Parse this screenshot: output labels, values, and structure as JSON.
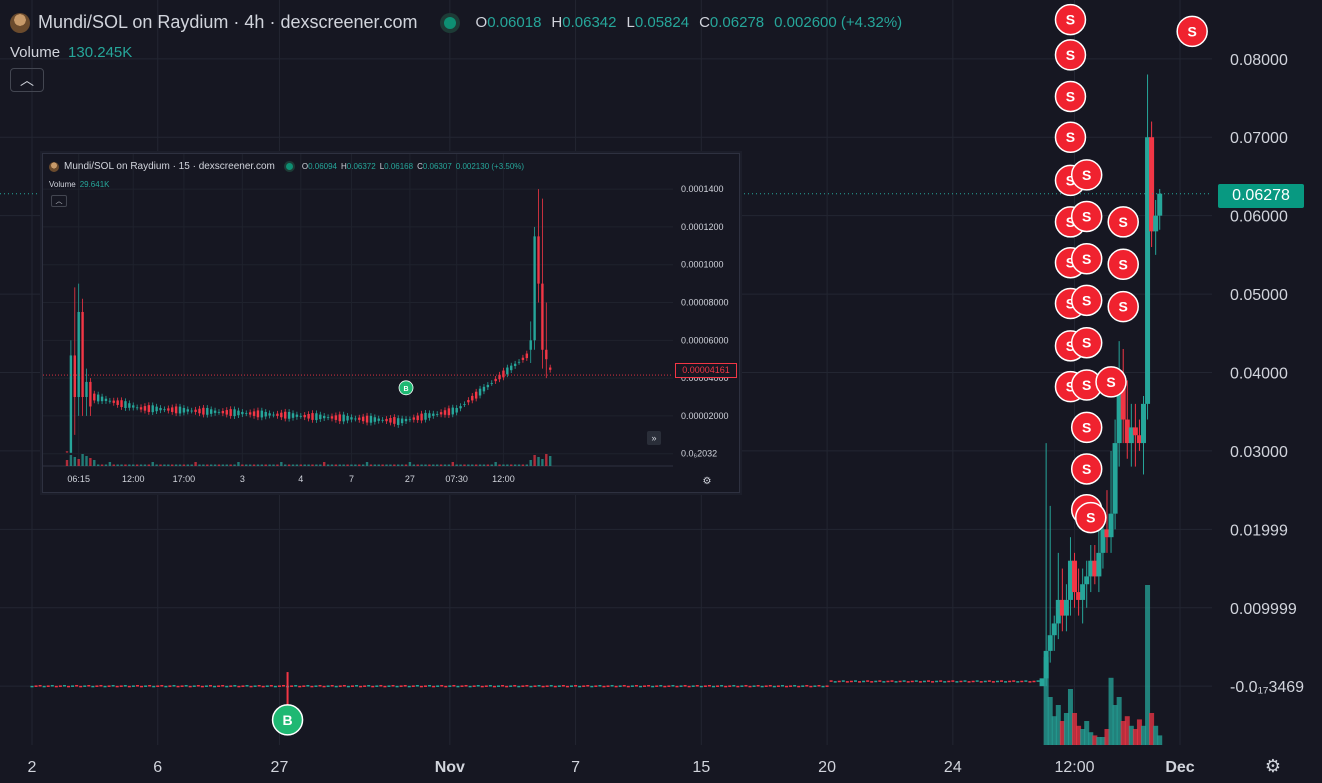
{
  "header": {
    "title": "Mundi/SOL on Raydium · 4h · dexscreener.com",
    "ohlc": {
      "o_label": "O",
      "o": "0.06018",
      "h_label": "H",
      "h": "0.06342",
      "l_label": "L",
      "l": "0.05824",
      "c_label": "C",
      "c": "0.06278",
      "change": "0.002600 (+4.32%)"
    },
    "volume_label": "Volume",
    "volume_value": "130.245K",
    "collapse_icon": "chevron-up-icon"
  },
  "colors": {
    "up": "#26a69a",
    "down": "#f23645",
    "bg": "#161722",
    "grid": "#232632",
    "text": "#d1d4dc",
    "buy": "#1fb873",
    "sell": "#f0222f"
  },
  "chart_data": [
    {
      "type": "candlestick",
      "interval": "4h",
      "current_price_label": "0.06278",
      "y_ticks": [
        {
          "v": 0.08,
          "label": "0.08000"
        },
        {
          "v": 0.07,
          "label": "0.07000"
        },
        {
          "v": 0.06,
          "label": "0.06000"
        },
        {
          "v": 0.05,
          "label": "0.05000"
        },
        {
          "v": 0.04,
          "label": "0.04000"
        },
        {
          "v": 0.03,
          "label": "0.03000"
        },
        {
          "v": 0.02,
          "label": "0.01999"
        },
        {
          "v": 0.01,
          "label": "0.009999"
        },
        {
          "v": 0.0,
          "label": "-0.0₁₇3469"
        }
      ],
      "ylim": [
        -0.0075,
        0.0875
      ],
      "x_ticks": [
        "2",
        "6",
        "27",
        "Nov",
        "7",
        "15",
        "20",
        "24",
        "12:00",
        "Dec"
      ],
      "x_tick_index": [
        0,
        31,
        61,
        103,
        134,
        165,
        196,
        227,
        257,
        283
      ],
      "n_candles": 305,
      "grid": true,
      "recent_candles": [
        {
          "i": 249,
          "o": 0.0,
          "h": 0.0,
          "l": 0.0,
          "c": 0.001
        },
        {
          "i": 250,
          "o": 0.001,
          "h": 0.031,
          "l": 0.0,
          "c": 0.0045
        },
        {
          "i": 251,
          "o": 0.0045,
          "h": 0.023,
          "l": 0.003,
          "c": 0.0065
        },
        {
          "i": 252,
          "o": 0.0065,
          "h": 0.009,
          "l": 0.0045,
          "c": 0.008
        },
        {
          "i": 253,
          "o": 0.008,
          "h": 0.017,
          "l": 0.006,
          "c": 0.011
        },
        {
          "i": 254,
          "o": 0.011,
          "h": 0.015,
          "l": 0.007,
          "c": 0.009
        },
        {
          "i": 255,
          "o": 0.009,
          "h": 0.013,
          "l": 0.007,
          "c": 0.011
        },
        {
          "i": 256,
          "o": 0.011,
          "h": 0.019,
          "l": 0.009,
          "c": 0.016
        },
        {
          "i": 257,
          "o": 0.016,
          "h": 0.017,
          "l": 0.01,
          "c": 0.012
        },
        {
          "i": 258,
          "o": 0.012,
          "h": 0.015,
          "l": 0.009,
          "c": 0.011
        },
        {
          "i": 259,
          "o": 0.011,
          "h": 0.015,
          "l": 0.008,
          "c": 0.013
        },
        {
          "i": 260,
          "o": 0.013,
          "h": 0.016,
          "l": 0.01,
          "c": 0.014
        },
        {
          "i": 261,
          "o": 0.014,
          "h": 0.018,
          "l": 0.012,
          "c": 0.016
        },
        {
          "i": 262,
          "o": 0.016,
          "h": 0.018,
          "l": 0.013,
          "c": 0.014
        },
        {
          "i": 263,
          "o": 0.014,
          "h": 0.02,
          "l": 0.012,
          "c": 0.017
        },
        {
          "i": 264,
          "o": 0.017,
          "h": 0.022,
          "l": 0.015,
          "c": 0.02
        },
        {
          "i": 265,
          "o": 0.02,
          "h": 0.025,
          "l": 0.017,
          "c": 0.019
        },
        {
          "i": 266,
          "o": 0.019,
          "h": 0.03,
          "l": 0.017,
          "c": 0.022
        },
        {
          "i": 267,
          "o": 0.022,
          "h": 0.034,
          "l": 0.02,
          "c": 0.031
        },
        {
          "i": 268,
          "o": 0.031,
          "h": 0.044,
          "l": 0.028,
          "c": 0.038
        },
        {
          "i": 269,
          "o": 0.038,
          "h": 0.043,
          "l": 0.031,
          "c": 0.034
        },
        {
          "i": 270,
          "o": 0.034,
          "h": 0.039,
          "l": 0.029,
          "c": 0.031
        },
        {
          "i": 271,
          "o": 0.031,
          "h": 0.036,
          "l": 0.028,
          "c": 0.033
        },
        {
          "i": 272,
          "o": 0.033,
          "h": 0.036,
          "l": 0.028,
          "c": 0.032
        },
        {
          "i": 273,
          "o": 0.032,
          "h": 0.034,
          "l": 0.03,
          "c": 0.031
        },
        {
          "i": 274,
          "o": 0.031,
          "h": 0.037,
          "l": 0.027,
          "c": 0.036
        },
        {
          "i": 275,
          "o": 0.036,
          "h": 0.078,
          "l": 0.034,
          "c": 0.07
        },
        {
          "i": 276,
          "o": 0.07,
          "h": 0.072,
          "l": 0.056,
          "c": 0.058
        },
        {
          "i": 277,
          "o": 0.058,
          "h": 0.062,
          "l": 0.055,
          "c": 0.06
        },
        {
          "i": 278,
          "o": 0.06,
          "h": 0.0634,
          "l": 0.0582,
          "c": 0.0628
        }
      ],
      "sell_markers": [
        {
          "i": 256,
          "v": 0.085
        },
        {
          "i": 256,
          "v": 0.0805
        },
        {
          "i": 256,
          "v": 0.0752
        },
        {
          "i": 256,
          "v": 0.07
        },
        {
          "i": 256,
          "v": 0.0645
        },
        {
          "i": 256,
          "v": 0.0592
        },
        {
          "i": 256,
          "v": 0.054
        },
        {
          "i": 256,
          "v": 0.0488
        },
        {
          "i": 256,
          "v": 0.0434
        },
        {
          "i": 256,
          "v": 0.0382
        },
        {
          "i": 260,
          "v": 0.0652
        },
        {
          "i": 260,
          "v": 0.0599
        },
        {
          "i": 260,
          "v": 0.0545
        },
        {
          "i": 260,
          "v": 0.0492
        },
        {
          "i": 260,
          "v": 0.0438
        },
        {
          "i": 260,
          "v": 0.0384
        },
        {
          "i": 260,
          "v": 0.033
        },
        {
          "i": 260,
          "v": 0.0277
        },
        {
          "i": 260,
          "v": 0.0225
        },
        {
          "i": 261,
          "v": 0.0215
        },
        {
          "i": 266,
          "v": 0.0388
        },
        {
          "i": 269,
          "v": 0.0592
        },
        {
          "i": 269,
          "v": 0.0538
        },
        {
          "i": 269,
          "v": 0.0484
        },
        {
          "i": 286,
          "v": 0.0835
        }
      ],
      "buy_markers": [
        {
          "i": 63,
          "v": -0.0043,
          "anchor": 0.0018
        }
      ],
      "volume_bars": [
        {
          "i": 250,
          "v": 0.55
        },
        {
          "i": 251,
          "v": 0.3
        },
        {
          "i": 252,
          "v": 0.18
        },
        {
          "i": 253,
          "v": 0.25
        },
        {
          "i": 254,
          "v": 0.15
        },
        {
          "i": 255,
          "v": 0.2
        },
        {
          "i": 256,
          "v": 0.35
        },
        {
          "i": 257,
          "v": 0.2
        },
        {
          "i": 258,
          "v": 0.12
        },
        {
          "i": 259,
          "v": 0.1
        },
        {
          "i": 260,
          "v": 0.15
        },
        {
          "i": 261,
          "v": 0.08
        },
        {
          "i": 262,
          "v": 0.06
        },
        {
          "i": 263,
          "v": 0.05
        },
        {
          "i": 264,
          "v": 0.05
        },
        {
          "i": 265,
          "v": 0.1
        },
        {
          "i": 266,
          "v": 0.42
        },
        {
          "i": 267,
          "v": 0.25
        },
        {
          "i": 268,
          "v": 0.3
        },
        {
          "i": 269,
          "v": 0.15
        },
        {
          "i": 270,
          "v": 0.18
        },
        {
          "i": 271,
          "v": 0.12
        },
        {
          "i": 272,
          "v": 0.1
        },
        {
          "i": 273,
          "v": 0.16
        },
        {
          "i": 274,
          "v": 0.12
        },
        {
          "i": 275,
          "v": 1.0
        },
        {
          "i": 276,
          "v": 0.2
        },
        {
          "i": 277,
          "v": 0.12
        },
        {
          "i": 278,
          "v": 0.06
        }
      ]
    },
    {
      "type": "candlestick",
      "interval": "15",
      "title": "Mundi/SOL on Raydium · 15 · dexscreener.com",
      "ohlc": {
        "o_label": "O",
        "o": "0.06094",
        "h_label": "H",
        "h": "0.06372",
        "l_label": "L",
        "l": "0.06168",
        "c_label": "C",
        "c": "0.06307",
        "change": "0.002130 (+3.50%)"
      },
      "volume_label": "Volume",
      "volume_value": "29.641K",
      "current_price_label": "0.00004161",
      "y_ticks": [
        {
          "v": 0.00014,
          "label": "0.0001400"
        },
        {
          "v": 0.00012,
          "label": "0.0001200"
        },
        {
          "v": 0.0001,
          "label": "0.0001000"
        },
        {
          "v": 8e-05,
          "label": "0.00008000"
        },
        {
          "v": 6e-05,
          "label": "0.00006000"
        },
        {
          "v": 4e-05,
          "label": "0.00004000"
        },
        {
          "v": 2e-05,
          "label": "0.00002000"
        },
        {
          "v": 0.0,
          "label": "0.0₆2032"
        }
      ],
      "ylim": [
        -6.5e-06,
        0.000148
      ],
      "x_ticks": [
        "06:15",
        "12:00",
        "17:00",
        "3",
        "4",
        "7",
        "27",
        "07:30",
        "12:00"
      ],
      "x_tick_index": [
        3,
        17,
        30,
        45,
        60,
        73,
        88,
        100,
        112
      ],
      "n_candles": 155,
      "buy_markers": [
        {
          "i": 87,
          "v": 1.9e-05
        }
      ],
      "key_candles": [
        {
          "i": 0,
          "o": 1.2e-06,
          "h": 1e-06,
          "l": 5e-07,
          "c": 1e-06
        },
        {
          "i": 1,
          "o": 5e-07,
          "h": 6e-05,
          "l": 5e-07,
          "c": 5.2e-05
        },
        {
          "i": 2,
          "o": 5.2e-05,
          "h": 8.8e-05,
          "l": 1e-05,
          "c": 3e-05
        },
        {
          "i": 3,
          "o": 3e-05,
          "h": 9e-05,
          "l": 2e-05,
          "c": 7.5e-05
        },
        {
          "i": 4,
          "o": 7.5e-05,
          "h": 8.2e-05,
          "l": 2e-05,
          "c": 3e-05
        },
        {
          "i": 5,
          "o": 3e-05,
          "h": 4.5e-05,
          "l": 2e-05,
          "c": 3.8e-05
        },
        {
          "i": 6,
          "o": 3.8e-05,
          "h": 4e-05,
          "l": 2e-05,
          "c": 2.5e-05
        },
        {
          "i": 119,
          "o": 5.5e-05,
          "h": 7e-05,
          "l": 4.8e-05,
          "c": 6e-05
        },
        {
          "i": 120,
          "o": 6e-05,
          "h": 0.00012,
          "l": 5.5e-05,
          "c": 0.000115
        },
        {
          "i": 121,
          "o": 0.000115,
          "h": 0.00014,
          "l": 8e-05,
          "c": 9e-05
        },
        {
          "i": 122,
          "o": 9e-05,
          "h": 0.000135,
          "l": 4.5e-05,
          "c": 5.5e-05
        },
        {
          "i": 123,
          "o": 5.5e-05,
          "h": 8e-05,
          "l": 4e-05,
          "c": 5e-05
        }
      ]
    }
  ]
}
